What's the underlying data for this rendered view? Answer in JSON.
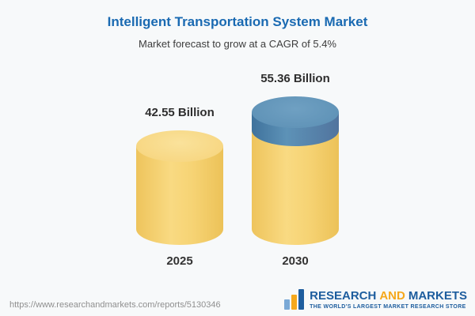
{
  "header": {
    "title": "Intelligent Transportation System Market",
    "subtitle": "Market forecast to grow at a CAGR of 5.4%"
  },
  "chart_data": {
    "type": "bar",
    "categories": [
      "2025",
      "2030"
    ],
    "values": [
      42.55,
      55.36
    ],
    "value_labels": [
      "42.55 Billion",
      "55.36 Billion"
    ],
    "unit": "Billion",
    "title": "Intelligent Transportation System Market",
    "subtitle": "Market forecast to grow at a CAGR of 5.4%",
    "ylim": [
      0,
      60
    ],
    "legend": "none",
    "gridlines": "off",
    "bar_style": "3d-cylinder",
    "colors": {
      "base_segment": "#f5cf70",
      "base_segment_cap": "#f8da8a",
      "growth_segment": "#4a7fa9",
      "growth_segment_cap": "#6396ba"
    }
  },
  "colors": {
    "title_blue": "#1a6ab2",
    "logo_blue": "#1d5d9e",
    "logo_orange": "#f5a81c",
    "background": "#f7f9fa"
  },
  "footer": {
    "url": "https://www.researchandmarkets.com/reports/5130346",
    "logo": {
      "research": "RESEARCH",
      "and": "AND",
      "markets": "MARKETS",
      "tagline": "THE WORLD'S LARGEST MARKET RESEARCH STORE"
    }
  }
}
